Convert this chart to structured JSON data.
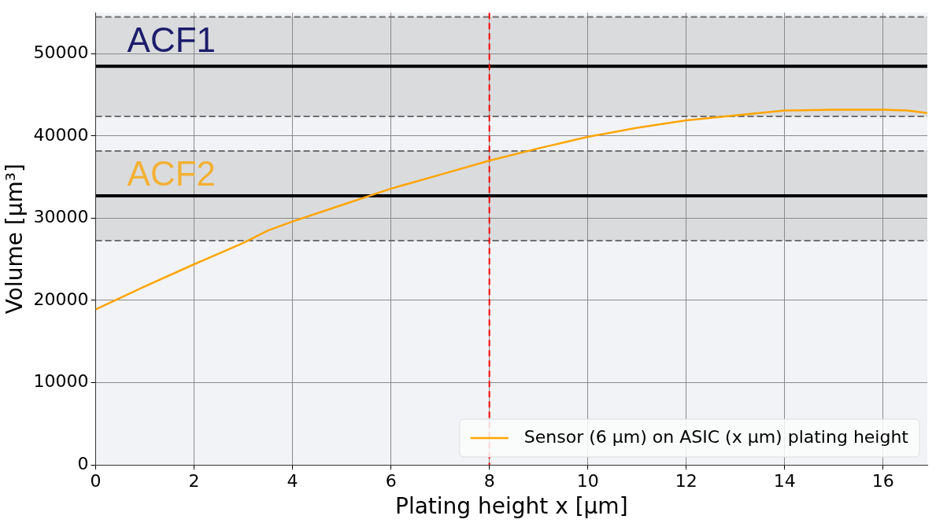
{
  "chart_data": {
    "type": "line",
    "xlabel": "Plating height x [µm]",
    "ylabel": "Volume [µm³]",
    "xlim": [
      0,
      16.9
    ],
    "xticks": [
      0,
      2,
      4,
      6,
      8,
      10,
      12,
      14,
      16
    ],
    "ylim": [
      0,
      55000
    ],
    "yticks": [
      0,
      10000,
      20000,
      30000,
      40000,
      50000
    ],
    "grid": true,
    "legend": "bottom right",
    "marker": "none",
    "line_style": "solid",
    "series": [
      {
        "name": "Sensor (6 µm) on ASIC (x µm) plating height",
        "color": "#ffa500",
        "x": [
          0,
          1,
          2,
          3,
          3.5,
          4,
          5,
          6,
          7,
          8,
          9,
          10,
          11,
          12,
          13,
          14,
          15,
          16,
          16.5,
          16.9
        ],
        "values": [
          18900,
          21700,
          24400,
          27000,
          28500,
          29600,
          31600,
          33600,
          35300,
          37000,
          38500,
          39900,
          41000,
          41900,
          42500,
          43100,
          43200,
          43200,
          43100,
          42800
        ]
      }
    ],
    "bands": [
      {
        "axis": "y",
        "from": 42400,
        "to": 54490,
        "label": "ACF1",
        "color": "#dadbdd"
      },
      {
        "axis": "y",
        "from": 27270,
        "to": 38170,
        "label": "ACF2",
        "color": "#dadbdd"
      }
    ],
    "ref_lines": [
      {
        "axis": "y",
        "value": 48480,
        "color": "#000000",
        "line_style": "solid"
      },
      {
        "axis": "y",
        "value": 32720,
        "color": "#000000",
        "line_style": "solid"
      },
      {
        "axis": "x",
        "value": 8,
        "color": "#ff0000",
        "line_style": "dashed"
      }
    ]
  }
}
